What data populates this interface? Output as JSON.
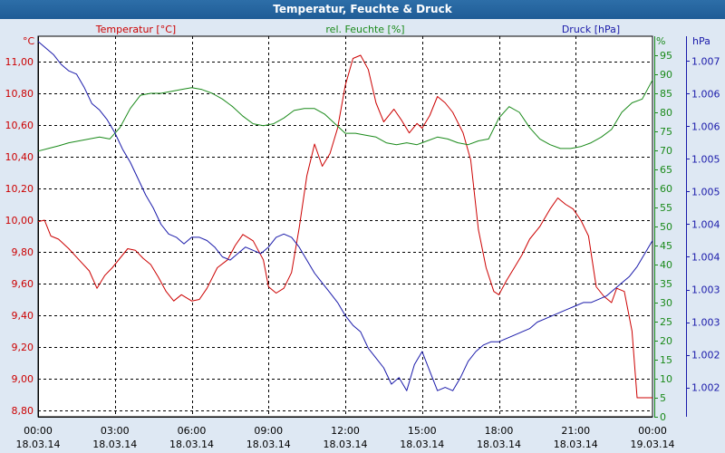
{
  "window": {
    "title": "Temperatur, Feuchte & Druck"
  },
  "colors": {
    "temperature": "#cc0000",
    "humidity": "#1a8a1a",
    "pressure": "#1a1aaa",
    "grid": "#000000",
    "plot_bg": "#ffffff"
  },
  "chart_data": {
    "type": "line",
    "title": "Temperatur, Feuchte & Druck",
    "x_ticks": [
      {
        "time": "00:00",
        "date": "18.03.14"
      },
      {
        "time": "03:00",
        "date": "18.03.14"
      },
      {
        "time": "06:00",
        "date": "18.03.14"
      },
      {
        "time": "09:00",
        "date": "18.03.14"
      },
      {
        "time": "12:00",
        "date": "18.03.14"
      },
      {
        "time": "15:00",
        "date": "18.03.14"
      },
      {
        "time": "18:00",
        "date": "18.03.14"
      },
      {
        "time": "21:00",
        "date": "18.03.14"
      },
      {
        "time": "00:00",
        "date": "19.03.14"
      }
    ],
    "xlim": [
      0,
      24
    ],
    "axes": {
      "temperature": {
        "unit": "°C",
        "ylim": [
          8.76,
          11.16
        ],
        "ticks": [
          "11,00",
          "10,80",
          "10,60",
          "10,40",
          "10,20",
          "10,00",
          "9,80",
          "9,60",
          "9,40",
          "9,20",
          "9,00",
          "8,80"
        ],
        "tick_values": [
          11.0,
          10.8,
          10.6,
          10.4,
          10.2,
          10.0,
          9.8,
          9.6,
          9.4,
          9.2,
          9.0,
          8.8
        ]
      },
      "humidity": {
        "unit": "%",
        "ylim": [
          0,
          100
        ],
        "ticks": [
          "95",
          "90",
          "85",
          "80",
          "75",
          "70",
          "65",
          "60",
          "55",
          "50",
          "45",
          "40",
          "35",
          "30",
          "25",
          "20",
          "15",
          "10",
          "5",
          "0"
        ],
        "tick_values": [
          95,
          90,
          85,
          80,
          75,
          70,
          65,
          60,
          55,
          50,
          45,
          40,
          35,
          30,
          25,
          20,
          15,
          10,
          5,
          0
        ]
      },
      "pressure": {
        "unit": "hPa",
        "ticks": [
          "1.007",
          "1.006",
          "1.006",
          "1.005",
          "1.005",
          "1.004",
          "1.004",
          "1.003",
          "1.003",
          "1.002",
          "1.002"
        ],
        "tick_values": [
          1007.0,
          1006.5,
          1006.0,
          1005.5,
          1005.0,
          1004.5,
          1004.0,
          1003.5,
          1003.0,
          1002.5,
          1002.0
        ],
        "ylim": [
          1001.55,
          1007.38
        ]
      }
    },
    "series": [
      {
        "name": "Temperatur [°C]",
        "axis": "temperature",
        "color": "#cc0000",
        "x": [
          0,
          0.25,
          0.5,
          0.8,
          1.2,
          1.6,
          2.0,
          2.3,
          2.6,
          2.9,
          3.2,
          3.5,
          3.8,
          4.1,
          4.4,
          4.7,
          5.0,
          5.3,
          5.6,
          6.0,
          6.3,
          6.6,
          7.0,
          7.4,
          7.7,
          8.0,
          8.4,
          8.8,
          9.0,
          9.3,
          9.6,
          9.9,
          10.2,
          10.5,
          10.8,
          11.1,
          11.4,
          11.7,
          12.0,
          12.3,
          12.6,
          12.9,
          13.2,
          13.5,
          13.9,
          14.2,
          14.5,
          14.8,
          15.0,
          15.3,
          15.6,
          15.9,
          16.2,
          16.6,
          16.9,
          17.2,
          17.5,
          17.8,
          18.0,
          18.3,
          18.6,
          18.9,
          19.2,
          19.6,
          20.0,
          20.3,
          20.6,
          20.9,
          21.2,
          21.5,
          21.8,
          22.1,
          22.4,
          22.6,
          22.9,
          23.2,
          23.4,
          23.6,
          23.8,
          24.0
        ],
        "values": [
          9.99,
          10.0,
          9.9,
          9.88,
          9.82,
          9.75,
          9.68,
          9.57,
          9.65,
          9.7,
          9.76,
          9.82,
          9.81,
          9.76,
          9.72,
          9.64,
          9.55,
          9.49,
          9.53,
          9.49,
          9.5,
          9.57,
          9.7,
          9.75,
          9.84,
          9.91,
          9.87,
          9.75,
          9.58,
          9.54,
          9.57,
          9.67,
          9.95,
          10.28,
          10.48,
          10.34,
          10.42,
          10.58,
          10.85,
          11.02,
          11.04,
          10.95,
          10.74,
          10.62,
          10.7,
          10.63,
          10.55,
          10.61,
          10.58,
          10.66,
          10.78,
          10.74,
          10.68,
          10.55,
          10.38,
          9.94,
          9.7,
          9.55,
          9.53,
          9.62,
          9.7,
          9.78,
          9.88,
          9.96,
          10.07,
          10.14,
          10.1,
          10.07,
          10.0,
          9.9,
          9.58,
          9.52,
          9.48,
          9.57,
          9.55,
          9.3,
          8.88,
          8.88,
          8.88,
          8.88
        ]
      },
      {
        "name": "rel. Feuchte [%]",
        "axis": "humidity",
        "color": "#1a8a1a",
        "x": [
          0,
          0.4,
          0.8,
          1.2,
          1.6,
          2.0,
          2.4,
          2.8,
          3.2,
          3.6,
          4.0,
          4.4,
          4.8,
          5.2,
          5.6,
          6.0,
          6.4,
          6.8,
          7.2,
          7.6,
          8.0,
          8.4,
          8.8,
          9.2,
          9.6,
          10.0,
          10.4,
          10.8,
          11.2,
          11.6,
          12.0,
          12.4,
          12.8,
          13.2,
          13.6,
          14.0,
          14.4,
          14.8,
          15.2,
          15.6,
          16.0,
          16.4,
          16.8,
          17.2,
          17.6,
          18.0,
          18.4,
          18.8,
          19.2,
          19.6,
          20.0,
          20.4,
          20.8,
          21.2,
          21.6,
          22.0,
          22.4,
          22.8,
          23.2,
          23.6,
          24.0
        ],
        "values": [
          69.8,
          70.5,
          71.2,
          72.0,
          72.5,
          73.0,
          73.5,
          73.0,
          76.0,
          81.0,
          84.5,
          85.0,
          85.0,
          85.5,
          86.0,
          86.5,
          86.0,
          85.0,
          83.5,
          81.5,
          79.0,
          77.0,
          76.5,
          77.0,
          78.5,
          80.5,
          81.0,
          81.0,
          79.5,
          77.0,
          74.5,
          74.5,
          74.0,
          73.5,
          72.0,
          71.5,
          72.0,
          71.5,
          72.5,
          73.5,
          73.0,
          72.0,
          71.5,
          72.5,
          73.0,
          78.5,
          81.5,
          80.0,
          76.0,
          73.0,
          71.5,
          70.5,
          70.5,
          71.0,
          72.0,
          73.5,
          75.5,
          80.0,
          82.5,
          83.5,
          88.5
        ]
      },
      {
        "name": "Druck [hPa]",
        "axis": "pressure",
        "color": "#1a1aaa",
        "x": [
          0,
          0.3,
          0.6,
          0.9,
          1.2,
          1.5,
          1.8,
          2.1,
          2.4,
          2.7,
          3.0,
          3.3,
          3.6,
          3.9,
          4.2,
          4.5,
          4.8,
          5.1,
          5.4,
          5.7,
          6.0,
          6.3,
          6.6,
          6.9,
          7.2,
          7.5,
          7.8,
          8.1,
          8.4,
          8.7,
          9.0,
          9.3,
          9.6,
          9.9,
          10.2,
          10.5,
          10.8,
          11.1,
          11.4,
          11.7,
          12.0,
          12.3,
          12.6,
          12.9,
          13.2,
          13.5,
          13.8,
          14.1,
          14.4,
          14.7,
          15.0,
          15.3,
          15.6,
          15.9,
          16.2,
          16.5,
          16.8,
          17.1,
          17.4,
          17.7,
          18.0,
          18.3,
          18.6,
          18.9,
          19.2,
          19.5,
          19.8,
          20.1,
          20.4,
          20.7,
          21.0,
          21.3,
          21.6,
          21.9,
          22.2,
          22.5,
          22.8,
          23.1,
          23.4,
          23.7,
          24.0
        ],
        "values": [
          1007.3,
          1007.2,
          1007.1,
          1006.95,
          1006.85,
          1006.8,
          1006.6,
          1006.35,
          1006.25,
          1006.1,
          1005.9,
          1005.65,
          1005.45,
          1005.2,
          1004.95,
          1004.75,
          1004.5,
          1004.35,
          1004.3,
          1004.2,
          1004.3,
          1004.3,
          1004.25,
          1004.15,
          1004.0,
          1003.95,
          1004.05,
          1004.15,
          1004.1,
          1004.05,
          1004.15,
          1004.3,
          1004.35,
          1004.3,
          1004.15,
          1003.95,
          1003.75,
          1003.6,
          1003.45,
          1003.3,
          1003.1,
          1002.95,
          1002.85,
          1002.6,
          1002.45,
          1002.3,
          1002.05,
          1002.15,
          1001.95,
          1002.35,
          1002.55,
          1002.25,
          1001.95,
          1002.0,
          1001.95,
          1002.15,
          1002.4,
          1002.55,
          1002.65,
          1002.7,
          1002.7,
          1002.75,
          1002.8,
          1002.85,
          1002.9,
          1003.0,
          1003.05,
          1003.1,
          1003.15,
          1003.2,
          1003.25,
          1003.3,
          1003.3,
          1003.35,
          1003.4,
          1003.5,
          1003.6,
          1003.7,
          1003.85,
          1004.05,
          1004.25
        ]
      }
    ],
    "legend": [
      {
        "label": "Temperatur [°C]",
        "color": "#cc0000",
        "placement": "top-left"
      },
      {
        "label": "rel. Feuchte [%]",
        "color": "#1a8a1a",
        "placement": "top-center"
      },
      {
        "label": "Druck [hPa]",
        "color": "#1a1aaa",
        "placement": "top-right"
      }
    ]
  }
}
